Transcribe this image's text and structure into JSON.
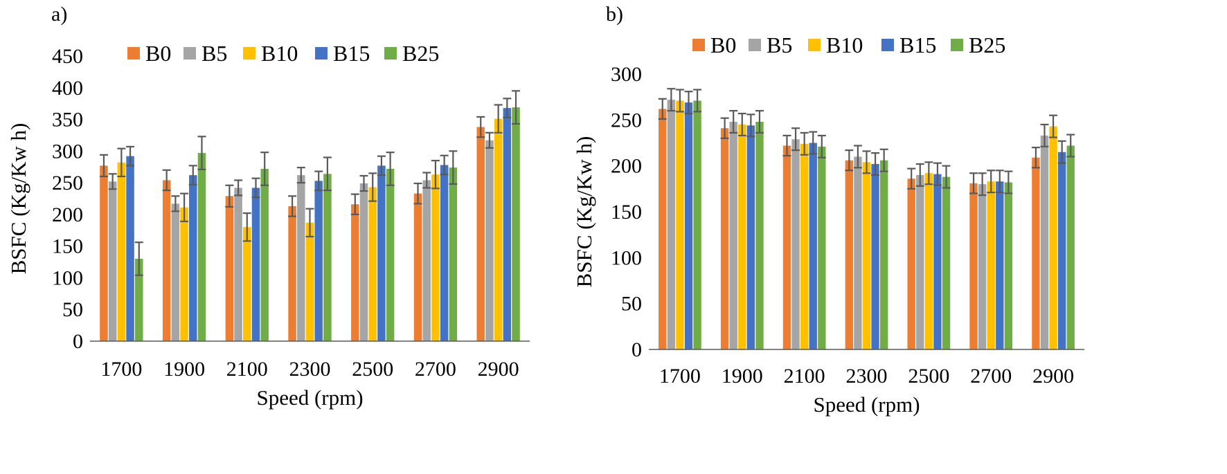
{
  "chart_data": [
    {
      "panel": "a)",
      "type": "bar",
      "xlabel": "Speed (rpm)",
      "ylabel": "BSFC (Kg/Kw h)",
      "ylim": [
        0,
        450
      ],
      "yticks": [
        0,
        50,
        100,
        150,
        200,
        250,
        300,
        350,
        400,
        450
      ],
      "legend_position": "top",
      "categories": [
        "1700",
        "1900",
        "2100",
        "2300",
        "2500",
        "2700",
        "2900"
      ],
      "series": [
        {
          "name": "B0",
          "color": "#ED7D31",
          "values": [
            277,
            254,
            229,
            213,
            216,
            233,
            338
          ],
          "errors": [
            17,
            16,
            17,
            16,
            16,
            16,
            16
          ]
        },
        {
          "name": "B5",
          "color": "#A5A5A5",
          "values": [
            252,
            217,
            242,
            262,
            249,
            254,
            317
          ],
          "errors": [
            12,
            12,
            12,
            12,
            12,
            12,
            12
          ]
        },
        {
          "name": "B10",
          "color": "#FFC000",
          "values": [
            282,
            211,
            180,
            187,
            243,
            263,
            351
          ],
          "errors": [
            22,
            22,
            22,
            22,
            22,
            22,
            22
          ]
        },
        {
          "name": "B15",
          "color": "#4472C4",
          "values": [
            292,
            262,
            242,
            253,
            277,
            278,
            368
          ],
          "errors": [
            15,
            15,
            15,
            15,
            15,
            15,
            15
          ]
        },
        {
          "name": "B25",
          "color": "#70AD47",
          "values": [
            130,
            297,
            272,
            264,
            272,
            274,
            369
          ],
          "errors": [
            26,
            26,
            26,
            26,
            26,
            26,
            26
          ]
        }
      ]
    },
    {
      "panel": "b)",
      "type": "bar",
      "xlabel": "Speed (rpm)",
      "ylabel": "BSFC (Kg/Kw h)",
      "ylim": [
        0,
        300
      ],
      "yticks": [
        0,
        50,
        100,
        150,
        200,
        250,
        300
      ],
      "legend_position": "top",
      "categories": [
        "1700",
        "1900",
        "2100",
        "2300",
        "2500",
        "2700",
        "2900"
      ],
      "series": [
        {
          "name": "B0",
          "color": "#ED7D31",
          "values": [
            262,
            241,
            222,
            206,
            186,
            181,
            209
          ],
          "errors": [
            11,
            11,
            11,
            11,
            11,
            11,
            11
          ]
        },
        {
          "name": "B5",
          "color": "#A5A5A5",
          "values": [
            272,
            248,
            229,
            210,
            190,
            180,
            233
          ],
          "errors": [
            12,
            12,
            12,
            12,
            12,
            12,
            12
          ]
        },
        {
          "name": "B10",
          "color": "#FFC000",
          "values": [
            271,
            245,
            224,
            204,
            192,
            183,
            243
          ],
          "errors": [
            12,
            12,
            12,
            12,
            12,
            12,
            12
          ]
        },
        {
          "name": "B15",
          "color": "#4472C4",
          "values": [
            269,
            244,
            225,
            202,
            191,
            183,
            215
          ],
          "errors": [
            12,
            12,
            12,
            12,
            12,
            12,
            12
          ]
        },
        {
          "name": "B25",
          "color": "#70AD47",
          "values": [
            271,
            248,
            221,
            206,
            188,
            182,
            222
          ],
          "errors": [
            12,
            12,
            12,
            12,
            12,
            12,
            12
          ]
        }
      ]
    }
  ]
}
